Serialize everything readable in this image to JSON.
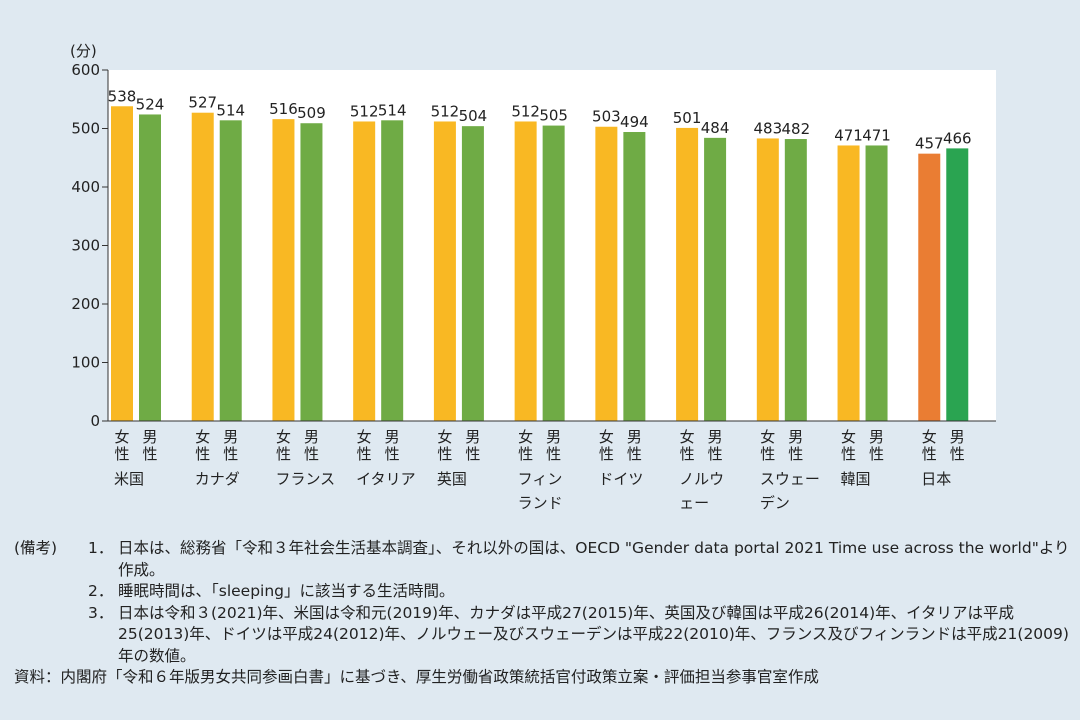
{
  "chart_data": {
    "type": "bar",
    "ylabel": "(分)",
    "ylim": [
      0,
      600
    ],
    "yticks": [
      0,
      100,
      200,
      300,
      400,
      500,
      600
    ],
    "categories": [
      {
        "label": [
          "米国"
        ],
        "female": 538,
        "male": 524
      },
      {
        "label": [
          "カナダ"
        ],
        "female": 527,
        "male": 514
      },
      {
        "label": [
          "フランス"
        ],
        "female": 516,
        "male": 509
      },
      {
        "label": [
          "イタリア"
        ],
        "female": 512,
        "male": 514
      },
      {
        "label": [
          "英国"
        ],
        "female": 512,
        "male": 504
      },
      {
        "label": [
          "フィン",
          "ランド"
        ],
        "female": 512,
        "male": 505
      },
      {
        "label": [
          "ドイツ"
        ],
        "female": 503,
        "male": 494
      },
      {
        "label": [
          "ノルウ",
          "ェー"
        ],
        "female": 501,
        "male": 484
      },
      {
        "label": [
          "スウェー",
          "デン"
        ],
        "female": 483,
        "male": 482
      },
      {
        "label": [
          "韓国"
        ],
        "female": 471,
        "male": 471
      },
      {
        "label": [
          "日本"
        ],
        "female": 457,
        "male": 466
      }
    ],
    "sex_labels": {
      "female": "女性",
      "male": "男性"
    },
    "colors": {
      "female": "#f9b823",
      "male": "#6fab45",
      "japan_female": "#ea7d33",
      "japan_male": "#2aa451"
    },
    "grid": false
  },
  "notes": {
    "head": "(備考)",
    "items": [
      {
        "num": "1．",
        "text": "日本は、総務省「令和３年社会生活基本調査」、それ以外の国は、OECD \"Gender data portal 2021 Time use across the world\"より作成。"
      },
      {
        "num": "2．",
        "text": "睡眠時間は、「sleeping」に該当する生活時間。"
      },
      {
        "num": "3．",
        "text": "日本は令和３(2021)年、米国は令和元(2019)年、カナダは平成27(2015)年、英国及び韓国は平成26(2014)年、イタリアは平成25(2013)年、ドイツは平成24(2012)年、ノルウェー及びスウェーデンは平成22(2010)年、フランス及びフィンランドは平成21(2009)年の数値。"
      }
    ],
    "source": "資料：内閣府「令和６年版男女共同参画白書」に基づき、厚生労働省政策統括官付政策立案・評価担当参事官室作成"
  }
}
